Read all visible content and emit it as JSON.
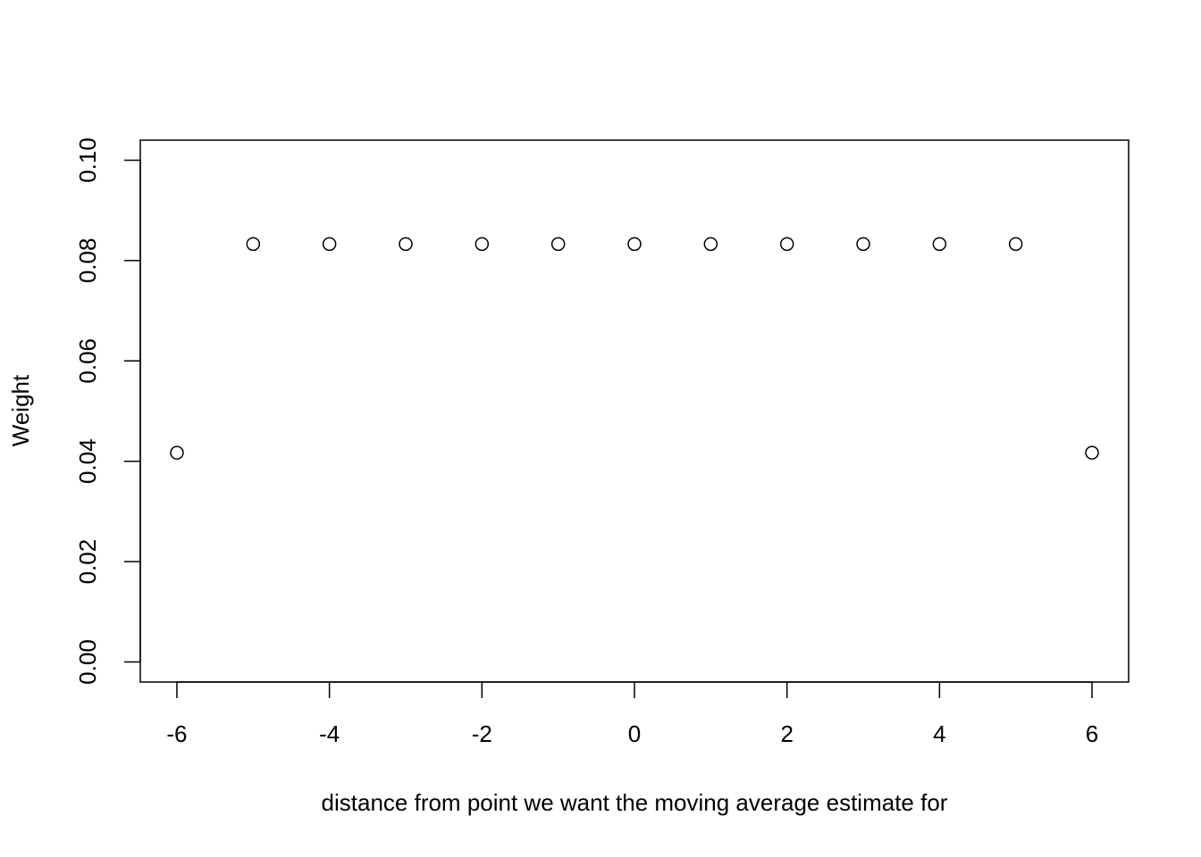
{
  "chart_data": {
    "type": "scatter",
    "x_label": "distance from point we want the moving average estimate for",
    "y_label": "Weight",
    "x": [
      -6,
      -5,
      -4,
      -3,
      -2,
      -1,
      0,
      1,
      2,
      3,
      4,
      5,
      6
    ],
    "values": [
      0.0417,
      0.0833,
      0.0833,
      0.0833,
      0.0833,
      0.0833,
      0.0833,
      0.0833,
      0.0833,
      0.0833,
      0.0833,
      0.0833,
      0.0417
    ],
    "color": "#000000",
    "xlim": [
      -6.48,
      6.48
    ],
    "ylim": [
      -0.004,
      0.104
    ],
    "xticks": [
      -6,
      -4,
      -2,
      0,
      2,
      4,
      6
    ],
    "yticks": [
      {
        "value": 0,
        "label": "0.00"
      },
      {
        "value": 0.02,
        "label": "0.02"
      },
      {
        "value": 0.04,
        "label": "0.04"
      },
      {
        "value": 0.06,
        "label": "0.06"
      },
      {
        "value": 0.08,
        "label": "0.08"
      },
      {
        "value": 0.1,
        "label": "0.10"
      }
    ]
  }
}
